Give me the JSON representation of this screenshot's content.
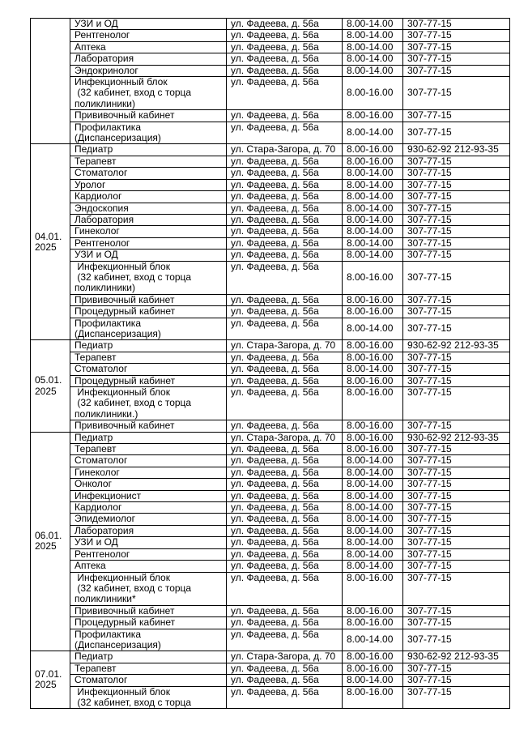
{
  "groups": [
    {
      "date": "",
      "rows": [
        [
          "УЗИ и ОД",
          "ул. Фадеева, д. 56а",
          "8.00-14.00",
          "307-77-15"
        ],
        [
          "Рентгенолог",
          "ул. Фадеева, д. 56а",
          "8.00-14.00",
          "307-77-15"
        ],
        [
          "Аптека",
          "ул. Фадеева, д. 56а",
          "8.00-14.00",
          "307-77-15"
        ],
        [
          "Лаборатория",
          "ул. Фадеева, д. 56а",
          "8.00-14.00",
          "307-77-15"
        ],
        [
          "Эндокринолог",
          "ул. Фадеева, д. 56а",
          "8.00-14.00",
          "307-77-15"
        ],
        [
          "Инфекционный блок\n (32 кабинет, вход с торца\nполиклиники)",
          "ул. Фадеева, д. 56а",
          "8.00-16.00",
          "307-77-15"
        ],
        [
          "Прививочный кабинет",
          "ул. Фадеева, д. 56а",
          "8.00-16.00",
          "307-77-15"
        ],
        [
          "Профилактика\n(Диспансеризация)",
          "ул. Фадеева, д. 56а",
          "8.00-14.00",
          "307-77-15"
        ]
      ]
    },
    {
      "date": "04.01.\n2025",
      "rows": [
        [
          "Педиатр",
          "ул. Стара-Загора, д. 70",
          "8.00-16.00",
          "930-62-92 212-93-35"
        ],
        [
          "Терапевт",
          "ул. Фадеева, д. 56а",
          "8.00-16.00",
          "307-77-15"
        ],
        [
          "Стоматолог",
          "ул. Фадеева, д. 56а",
          "8.00-14.00",
          "307-77-15"
        ],
        [
          "Уролог",
          "ул. Фадеева, д. 56а",
          "8.00-14.00",
          "307-77-15"
        ],
        [
          "Кардиолог",
          "ул. Фадеева, д. 56а",
          "8.00-14.00",
          "307-77-15"
        ],
        [
          "Эндоскопия",
          "ул. Фадеева, д. 56а",
          "8.00-14.00",
          "307-77-15"
        ],
        [
          "Лаборатория",
          "ул. Фадеева, д. 56а",
          "8.00-14.00",
          "307-77-15"
        ],
        [
          "Гинеколог",
          "ул. Фадеева, д. 56а",
          "8.00-14.00",
          "307-77-15"
        ],
        [
          "Рентгенолог",
          "ул. Фадеева, д. 56а",
          "8.00-14.00",
          "307-77-15"
        ],
        [
          "УЗИ и ОД",
          "ул. Фадеева, д. 56а",
          "8.00-14.00",
          "307-77-15"
        ],
        [
          " Инфекционный блок\n (32 кабинет, вход с торца\nполиклиники)",
          "ул. Фадеева, д. 56а",
          "8.00-16.00",
          "307-77-15"
        ],
        [
          "Прививочный кабинет",
          "ул. Фадеева, д. 56а",
          "8.00-16.00",
          "307-77-15"
        ],
        [
          "Процедурный кабинет",
          "ул. Фадеева, д. 56а",
          "8.00-16.00",
          "307-77-15"
        ],
        [
          "Профилактика\n(Диспансеризация)",
          "ул. Фадеева, д. 56а",
          "8.00-14.00",
          "307-77-15"
        ]
      ]
    },
    {
      "date": "05.01.\n2025",
      "rows": [
        [
          "Педиатр",
          "ул. Стара-Загора, д. 70",
          "8.00-16.00",
          "930-62-92 212-93-35"
        ],
        [
          "Терапевт",
          "ул. Фадеева, д. 56а",
          "8.00-16.00",
          "307-77-15"
        ],
        [
          "Стоматолог",
          "ул. Фадеева, д. 56а",
          "8.00-14.00",
          "307-77-15"
        ],
        [
          "Процедурный кабинет",
          "ул. Фадеева, д. 56а",
          "8.00-16.00",
          "307-77-15"
        ],
        [
          " Инфекционный блок\n (32 кабинет, вход с торца\nполиклиники.)",
          "ул. Фадеева, д. 56а",
          "8.00-16.00",
          "307-77-15"
        ],
        [
          "Прививочный кабинет",
          "ул. Фадеева, д. 56а",
          "8.00-16.00",
          "307-77-15"
        ]
      ]
    },
    {
      "date": "06.01.\n2025",
      "rows": [
        [
          "Педиатр",
          "ул. Стара-Загора, д. 70",
          "8.00-16.00",
          "930-62-92 212-93-35"
        ],
        [
          "Терапевт",
          "ул. Фадеева, д. 56а",
          "8.00-16.00",
          "307-77-15"
        ],
        [
          "Стоматолог",
          "ул. Фадеева, д. 56а",
          "8.00-14.00",
          "307-77-15"
        ],
        [
          "Гинеколог",
          "ул. Фадеева, д. 56а",
          "8.00-14.00",
          "307-77-15"
        ],
        [
          "Онколог",
          "ул. Фадеева, д. 56а",
          "8.00-14.00",
          "307-77-15"
        ],
        [
          "Инфекционист",
          "ул. Фадеева, д. 56а",
          "8.00-14.00",
          "307-77-15"
        ],
        [
          "Кардиолог",
          "ул. Фадеева, д. 56а",
          "8.00-14.00",
          "307-77-15"
        ],
        [
          "Эпидемиолог",
          "ул. Фадеева, д. 56а",
          "8.00-14.00",
          "307-77-15"
        ],
        [
          "Лаборатория",
          "ул. Фадеева, д. 56а",
          "8.00-14.00",
          "307-77-15"
        ],
        [
          "УЗИ и ОД",
          "ул. Фадеева, д. 56а",
          "8.00-14.00",
          "307-77-15"
        ],
        [
          "Рентгенолог",
          "ул. Фадеева, д. 56а",
          "8.00-14.00",
          "307-77-15"
        ],
        [
          "Аптека",
          "ул. Фадеева, д. 56а",
          "8.00-14.00",
          "307-77-15"
        ],
        [
          " Инфекционный блок\n (32 кабинет, вход с торца\nполиклиники*",
          "ул. Фадеева, д. 56а",
          "8.00-16.00",
          "307-77-15"
        ],
        [
          "Прививочный кабинет",
          "ул. Фадеева, д. 56а",
          "8.00-16.00",
          "307-77-15"
        ],
        [
          "Процедурный кабинет",
          "ул. Фадеева, д. 56а",
          "8.00-16.00",
          "307-77-15"
        ],
        [
          "Профилактика\n(Диспансеризация)",
          "ул. Фадеева, д. 56а",
          "8.00-14.00",
          "307-77-15"
        ]
      ]
    },
    {
      "date": "07.01.\n2025",
      "rows": [
        [
          "Педиатр",
          "ул. Стара-Загора, д. 70",
          "8.00-16.00",
          "930-62-92 212-93-35"
        ],
        [
          "Терапевт",
          "ул. Фадеева, д. 56а",
          "8.00-16.00",
          "307-77-15"
        ],
        [
          "Стоматолог",
          "ул. Фадеева, д. 56а",
          "8.00-14.00",
          "307-77-15"
        ],
        [
          " Инфекционный блок\n (32 кабинет, вход с торца",
          "ул. Фадеева, д. 56а",
          "8.00-16.00",
          "307-77-15"
        ]
      ]
    }
  ]
}
